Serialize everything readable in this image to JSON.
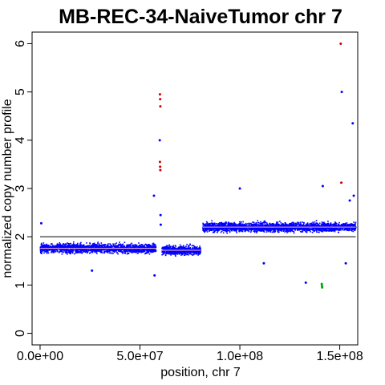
{
  "chart_data": {
    "type": "scatter",
    "title": "MB-REC-34-NaiveTumor chr 7",
    "xlabel": "position, chr 7",
    "ylabel": "normalized copy number profile",
    "xlim": [
      -4000000,
      159000000
    ],
    "ylim": [
      -0.24,
      6.24
    ],
    "x_ticks": [
      0,
      50000000,
      100000000,
      150000000
    ],
    "x_tick_labels": [
      "0.0e+00",
      "5.0e+07",
      "1.0e+08",
      "1.5e+08"
    ],
    "y_ticks": [
      0,
      1,
      2,
      3,
      4,
      5,
      6
    ],
    "y_tick_labels": [
      "0",
      "1",
      "2",
      "3",
      "4",
      "5",
      "6"
    ],
    "reference_line": {
      "y": 2,
      "color": "#000000"
    },
    "colors": {
      "normal": "#0000ff",
      "gain": "#cc0000",
      "loss": "#00aa00",
      "segment": "#ffb6c1"
    },
    "segments": [
      {
        "start": 100000,
        "end": 58000000,
        "value": 1.76
      },
      {
        "start": 61000000,
        "end": 80500000,
        "value": 1.72
      },
      {
        "start": 81500000,
        "end": 158000000,
        "value": 2.2
      }
    ],
    "outliers": [
      {
        "x": 600000,
        "y": 2.28,
        "class": "normal"
      },
      {
        "x": 26000000,
        "y": 1.3,
        "class": "normal"
      },
      {
        "x": 57000000,
        "y": 2.85,
        "class": "normal"
      },
      {
        "x": 57300000,
        "y": 1.2,
        "class": "normal"
      },
      {
        "x": 60000000,
        "y": 4.95,
        "class": "gain"
      },
      {
        "x": 60100000,
        "y": 4.85,
        "class": "gain"
      },
      {
        "x": 60200000,
        "y": 4.7,
        "class": "gain"
      },
      {
        "x": 59900000,
        "y": 4.0,
        "class": "normal"
      },
      {
        "x": 60000000,
        "y": 3.55,
        "class": "gain"
      },
      {
        "x": 60100000,
        "y": 3.45,
        "class": "gain"
      },
      {
        "x": 60200000,
        "y": 3.38,
        "class": "gain"
      },
      {
        "x": 60300000,
        "y": 2.45,
        "class": "normal"
      },
      {
        "x": 60400000,
        "y": 2.25,
        "class": "normal"
      },
      {
        "x": 100000000,
        "y": 3.0,
        "class": "normal"
      },
      {
        "x": 112000000,
        "y": 1.45,
        "class": "normal"
      },
      {
        "x": 133000000,
        "y": 1.05,
        "class": "normal"
      },
      {
        "x": 141000000,
        "y": 1.02,
        "class": "loss"
      },
      {
        "x": 141100000,
        "y": 0.98,
        "class": "loss"
      },
      {
        "x": 141200000,
        "y": 0.95,
        "class": "loss"
      },
      {
        "x": 141500000,
        "y": 3.05,
        "class": "normal"
      },
      {
        "x": 150500000,
        "y": 6.0,
        "class": "gain"
      },
      {
        "x": 151000000,
        "y": 5.0,
        "class": "normal"
      },
      {
        "x": 150800000,
        "y": 3.12,
        "class": "gain"
      },
      {
        "x": 153000000,
        "y": 1.45,
        "class": "normal"
      },
      {
        "x": 156500000,
        "y": 4.35,
        "class": "normal"
      },
      {
        "x": 157000000,
        "y": 2.85,
        "class": "normal"
      },
      {
        "x": 155000000,
        "y": 2.75,
        "class": "normal"
      }
    ],
    "grid": false,
    "legend": "none"
  }
}
